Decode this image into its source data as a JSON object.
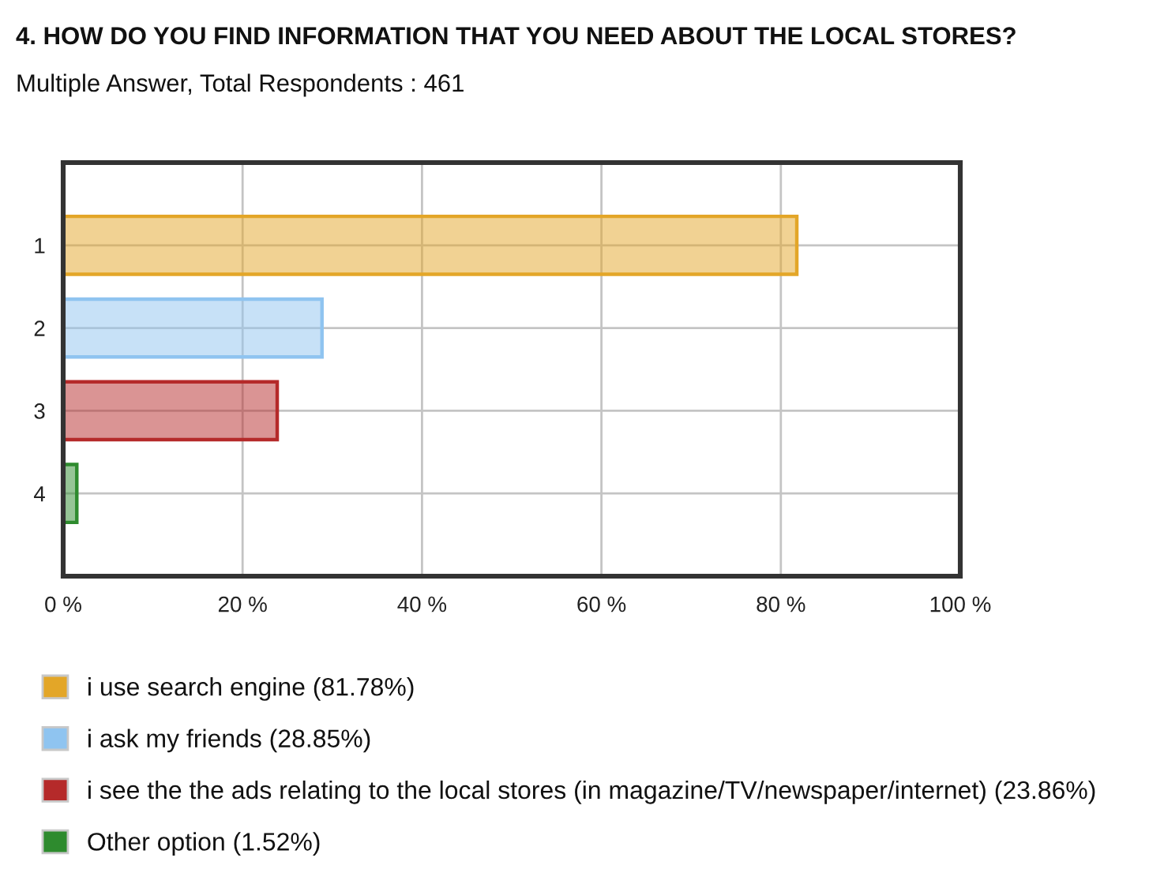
{
  "chart_data": {
    "type": "bar",
    "orientation": "horizontal",
    "stacked": true,
    "title": "4. HOW DO YOU FIND INFORMATION THAT YOU NEED ABOUT THE LOCAL STORES?",
    "subtitle": "Multiple Answer, Total Respondents : 461",
    "categories": [
      "1",
      "2",
      "3",
      "4"
    ],
    "series": [
      {
        "name": "i use search engine (81.78%)",
        "color": "#e3a628",
        "values": [
          81.78,
          null,
          null,
          null
        ]
      },
      {
        "name": "i ask my friends (28.85%)",
        "color": "#8fc4f0",
        "values": [
          null,
          28.85,
          null,
          null
        ]
      },
      {
        "name": "i see the the ads relating to the local stores (in magazine/TV/newspaper/internet) (23.86%)",
        "color": "#b52a2a",
        "values": [
          null,
          null,
          23.86,
          null
        ]
      },
      {
        "name": "Other option (1.52%)",
        "color": "#2e8b2e",
        "values": [
          null,
          null,
          null,
          1.52
        ]
      }
    ],
    "xlim": [
      0,
      100
    ],
    "xticks": [
      {
        "value": 0,
        "label": "0 %"
      },
      {
        "value": 20,
        "label": "20 %"
      },
      {
        "value": 40,
        "label": "40 %"
      },
      {
        "value": 60,
        "label": "60 %"
      },
      {
        "value": 80,
        "label": "80 %"
      },
      {
        "value": 100,
        "label": "100 %"
      }
    ],
    "grid": true,
    "legend": "bottom"
  }
}
